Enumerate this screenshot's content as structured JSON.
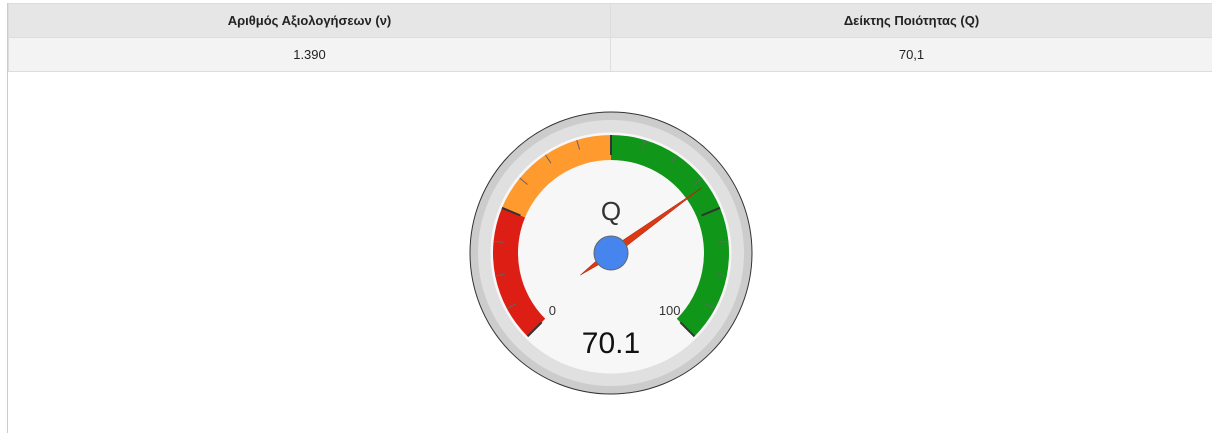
{
  "table": {
    "headers": [
      "Αριθμός Αξιολογήσεων (ν)",
      "Δείκτης Ποιότητας (Q)"
    ],
    "rows": [
      [
        "1.390",
        "70,1"
      ]
    ]
  },
  "gauge": {
    "label": "Q",
    "value": 70.1,
    "lim": [
      0,
      100
    ],
    "ticks": [
      0,
      {
        "value": 25,
        "label": null
      },
      {
        "value": 50,
        "label": null
      },
      {
        "value": 75,
        "label": null
      },
      100
    ],
    "minor_ticks": 4,
    "bands": [
      {
        "from": 0,
        "to": 25,
        "color": "#dc1e14"
      },
      {
        "from": 25,
        "to": 50,
        "color": "#ff9a2e"
      },
      {
        "from": 50,
        "to": 100,
        "color": "#109618"
      }
    ],
    "needle_color": "#dc3912",
    "hub_color": "#4684ee"
  }
}
